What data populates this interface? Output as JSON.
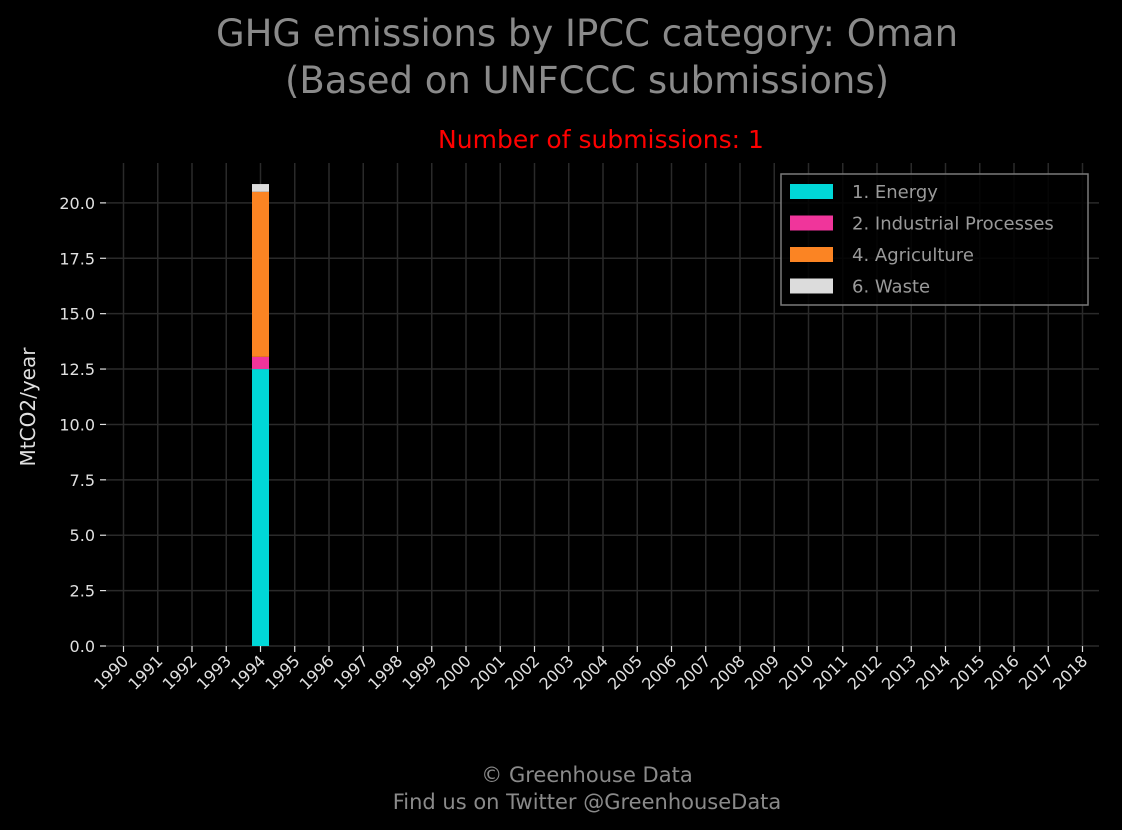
{
  "title_line1": "GHG emissions by IPCC category: Oman",
  "title_line2": "(Based on UNFCCC submissions)",
  "subtitle": "Number of submissions: 1",
  "footer_line1": "© Greenhouse Data",
  "footer_line2": "Find us on Twitter @GreenhouseData",
  "chart_data": {
    "type": "bar",
    "stacked": true,
    "categories": [
      "1990",
      "1991",
      "1992",
      "1993",
      "1994",
      "1995",
      "1996",
      "1997",
      "1998",
      "1999",
      "2000",
      "2001",
      "2002",
      "2003",
      "2004",
      "2005",
      "2006",
      "2007",
      "2008",
      "2009",
      "2010",
      "2011",
      "2012",
      "2013",
      "2014",
      "2015",
      "2016",
      "2017",
      "2018"
    ],
    "series": [
      {
        "name": "1. Energy",
        "color": "#00d7d7",
        "values": [
          null,
          null,
          null,
          null,
          12.5,
          null,
          null,
          null,
          null,
          null,
          null,
          null,
          null,
          null,
          null,
          null,
          null,
          null,
          null,
          null,
          null,
          null,
          null,
          null,
          null,
          null,
          null,
          null,
          null
        ]
      },
      {
        "name": "2. Industrial Processes",
        "color": "#f0359b",
        "values": [
          null,
          null,
          null,
          null,
          0.55,
          null,
          null,
          null,
          null,
          null,
          null,
          null,
          null,
          null,
          null,
          null,
          null,
          null,
          null,
          null,
          null,
          null,
          null,
          null,
          null,
          null,
          null,
          null,
          null
        ]
      },
      {
        "name": "4. Agriculture",
        "color": "#fb8423",
        "values": [
          null,
          null,
          null,
          null,
          7.45,
          null,
          null,
          null,
          null,
          null,
          null,
          null,
          null,
          null,
          null,
          null,
          null,
          null,
          null,
          null,
          null,
          null,
          null,
          null,
          null,
          null,
          null,
          null,
          null
        ]
      },
      {
        "name": "6. Waste",
        "color": "#dcdcdc",
        "values": [
          null,
          null,
          null,
          null,
          0.35,
          null,
          null,
          null,
          null,
          null,
          null,
          null,
          null,
          null,
          null,
          null,
          null,
          null,
          null,
          null,
          null,
          null,
          null,
          null,
          null,
          null,
          null,
          null,
          null
        ]
      }
    ],
    "ylabel": "MtCO2/year",
    "xlabel": "",
    "ylim": [
      0,
      21.8
    ],
    "yticks": [
      "0.0",
      "2.5",
      "5.0",
      "7.5",
      "10.0",
      "12.5",
      "15.0",
      "17.5",
      "20.0"
    ],
    "grid": true,
    "legend_position": "top-right",
    "background": "#000000"
  }
}
